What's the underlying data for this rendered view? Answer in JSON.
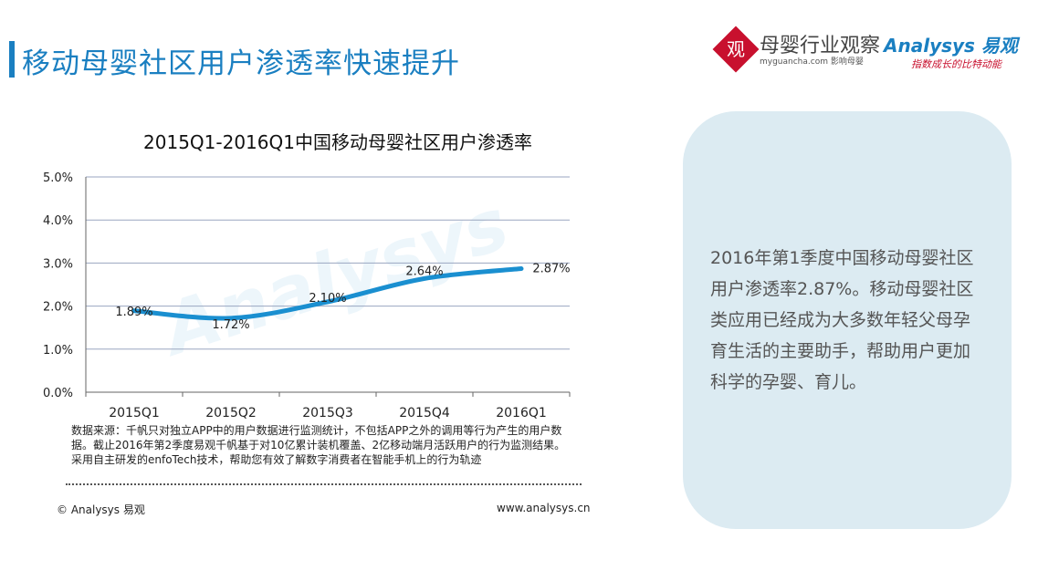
{
  "header": {
    "title": "移动母婴社区用户渗透率快速提升"
  },
  "logos": {
    "seal_char": "观",
    "brand_cn": "母婴行业观察",
    "brand_sub": "myguancha.com 影响母婴",
    "analysys": "Analysys 易观",
    "slogan": "指数成长的比特动能"
  },
  "chart_data": {
    "type": "line",
    "title": "2015Q1-2016Q1中国移动母婴社区用户渗透率",
    "categories": [
      "2015Q1",
      "2015Q2",
      "2015Q3",
      "2015Q4",
      "2016Q1"
    ],
    "values": [
      1.89,
      1.72,
      2.1,
      2.64,
      2.87
    ],
    "data_labels": [
      "1.89%",
      "1.72%",
      "2.10%",
      "2.64%",
      "2.87%"
    ],
    "y_ticks": [
      "0.0%",
      "1.0%",
      "2.0%",
      "3.0%",
      "4.0%",
      "5.0%"
    ],
    "ylim": [
      0,
      5
    ],
    "grid": true,
    "line_color": "#1a8fd0",
    "watermark": "Analysys"
  },
  "footer": {
    "note": "数据来源：千帆只对独立APP中的用户数据进行监测统计，不包括APP之外的调用等行为产生的用户数据。截止2016年第2季度易观千帆基于对10亿累计装机覆盖、2亿移动端月活跃用户的行为监测结果。采用自主研发的enfoTech技术，帮助您有效了解数字消费者在智能手机上的行为轨迹",
    "copyright": "© Analysys 易观",
    "website": "www.analysys.cn"
  },
  "side_panel": {
    "text": "2016年第1季度中国移动母婴社区用户渗透率2.87%。移动母婴社区类应用已经成为大多数年轻父母孕育生活的主要助手，帮助用户更加科学的孕婴、育儿。"
  },
  "colors": {
    "accent": "#1a7fc1",
    "panel_bg": "#dcebf2",
    "brand_red": "#c8102e"
  }
}
